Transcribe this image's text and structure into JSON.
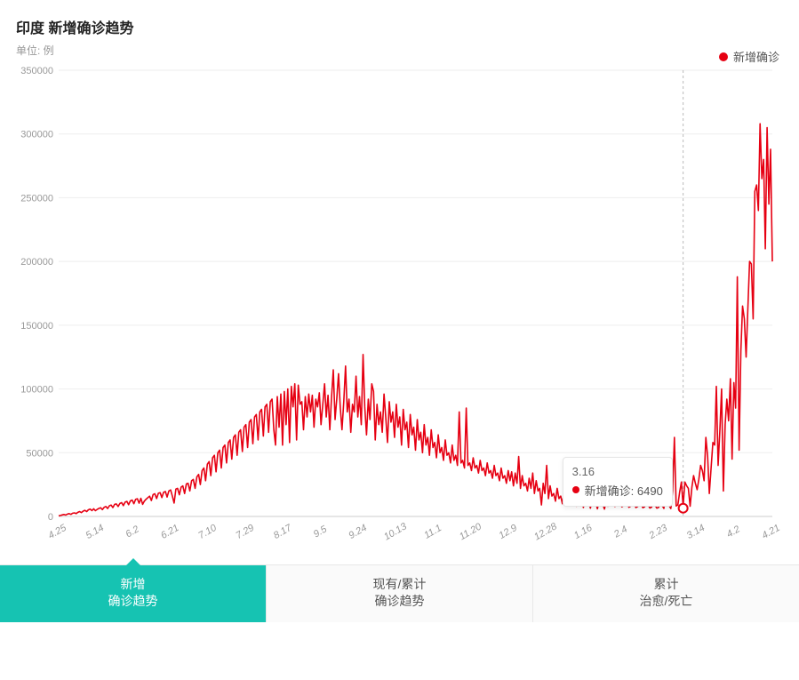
{
  "chart": {
    "type": "line",
    "title": "印度 新增确诊趋势",
    "unit_label": "单位: 例",
    "legend_label": "新增确诊",
    "series_color": "#e60012",
    "background_color": "#ffffff",
    "line_width": 1.6,
    "title_fontsize": 16,
    "unit_fontsize": 12,
    "axis_font_color": "#999999",
    "axis_fontsize": 11,
    "grid_color": "#eeeeee",
    "ylim": [
      0,
      350000
    ],
    "ytick_step": 50000,
    "y_ticks": [
      0,
      50000,
      100000,
      150000,
      200000,
      250000,
      300000,
      350000
    ],
    "x_ticks": [
      "4.25",
      "5.14",
      "6.2",
      "6.21",
      "7.10",
      "7.29",
      "8.17",
      "9.5",
      "9.24",
      "10.13",
      "11.1",
      "11.20",
      "12.9",
      "12.28",
      "1.16",
      "2.4",
      "2.23",
      "3.14",
      "4.2",
      "4.21"
    ],
    "x_tick_font_style": "italic",
    "hover": {
      "index_pos": 0.875,
      "date": "3.16",
      "series_label": "新增确诊",
      "value": 6490,
      "marker_color": "#e60012",
      "marker_ring_color": "#ffffff",
      "guide_color": "#bbbbbb",
      "guide_dash": "3,3"
    },
    "values": [
      500,
      800,
      1200,
      1500,
      1100,
      1800,
      2200,
      1600,
      2500,
      2800,
      2200,
      3200,
      3800,
      3000,
      4200,
      4800,
      3800,
      5200,
      5800,
      4600,
      6000,
      4500,
      5500,
      6300,
      6800,
      5400,
      7200,
      7800,
      6200,
      8400,
      8900,
      7000,
      9500,
      9800,
      7800,
      10200,
      10800,
      8500,
      11200,
      11800,
      9200,
      12200,
      12800,
      10000,
      13400,
      13900,
      10400,
      14200,
      9500,
      12000,
      13500,
      14800,
      15900,
      12500,
      17200,
      17800,
      14000,
      18200,
      18600,
      14800,
      19000,
      19500,
      15200,
      20000,
      20800,
      16000,
      10500,
      21500,
      22000,
      17000,
      23000,
      24000,
      18000,
      25500,
      26000,
      20000,
      28000,
      29000,
      22000,
      31000,
      33000,
      25000,
      36000,
      38000,
      28000,
      41000,
      43000,
      32000,
      46000,
      48000,
      35000,
      50000,
      52000,
      38000,
      54000,
      56000,
      42000,
      58000,
      60000,
      45000,
      62000,
      64000,
      48000,
      66000,
      68000,
      51000,
      70000,
      72000,
      54000,
      74000,
      76000,
      57000,
      78000,
      80000,
      60000,
      82000,
      84000,
      63000,
      86000,
      88000,
      66000,
      90000,
      92000,
      68000,
      56000,
      94000,
      70000,
      96000,
      56000,
      98000,
      72000,
      100000,
      58000,
      102000,
      86000,
      104000,
      60000,
      103000,
      88000,
      90000,
      68000,
      94000,
      78000,
      96000,
      82000,
      95000,
      70000,
      92000,
      86000,
      97000,
      72000,
      88000,
      104000,
      78000,
      95000,
      68000,
      93000,
      115000,
      76000,
      92000,
      112000,
      85000,
      68000,
      90000,
      118000,
      82000,
      92000,
      66000,
      88000,
      82000,
      110000,
      78000,
      94000,
      72000,
      127000,
      86000,
      64000,
      92000,
      76000,
      104000,
      98000,
      60000,
      88000,
      72000,
      82000,
      66000,
      96000,
      78000,
      58000,
      90000,
      74000,
      82000,
      62000,
      88000,
      70000,
      78000,
      56000,
      84000,
      68000,
      74000,
      54000,
      80000,
      64000,
      70000,
      52000,
      76000,
      60000,
      66000,
      50000,
      72000,
      56000,
      62000,
      48000,
      68000,
      54000,
      58000,
      46000,
      64000,
      50000,
      54000,
      44000,
      60000,
      48000,
      50000,
      42000,
      56000,
      44000,
      48000,
      40000,
      82000,
      42000,
      44000,
      38000,
      85000,
      40000,
      42000,
      36000,
      46000,
      38000,
      40000,
      34000,
      44000,
      36000,
      38000,
      32000,
      42000,
      34000,
      36000,
      30000,
      40000,
      32000,
      34000,
      28000,
      38000,
      30000,
      32000,
      26000,
      36000,
      28000,
      35000,
      24000,
      34000,
      26000,
      47000,
      22000,
      32000,
      24000,
      26000,
      20000,
      30000,
      22000,
      34000,
      18000,
      28000,
      20000,
      22000,
      9000,
      26000,
      18000,
      40000,
      14000,
      24000,
      16000,
      18000,
      12000,
      22000,
      14000,
      16000,
      10000,
      20000,
      13000,
      22000,
      9000,
      18000,
      12000,
      26000,
      8000,
      16000,
      11000,
      14000,
      7000,
      15000,
      10000,
      12000,
      6500,
      14000,
      9000,
      11000,
      6000,
      13000,
      8500,
      10000,
      5800,
      12000,
      8000,
      9500,
      15000,
      11500,
      7800,
      9000,
      10500,
      11000,
      7500,
      8500,
      14000,
      10500,
      7200,
      8000,
      14500,
      10000,
      7000,
      7800,
      15000,
      9500,
      6800,
      7500,
      16000,
      9000,
      6600,
      7300,
      17000,
      8800,
      6490,
      7100,
      18000,
      8600,
      6300,
      24000,
      19000,
      8400,
      6200,
      20000,
      62000,
      8200,
      9000,
      19000,
      27000,
      8100,
      27000,
      24000,
      22000,
      8000,
      23000,
      32000,
      26000,
      21000,
      29000,
      40000,
      36000,
      28000,
      62000,
      47000,
      18000,
      38000,
      58000,
      56000,
      102000,
      40000,
      68000,
      100000,
      20000,
      72000,
      92000,
      75000,
      108000,
      45000,
      105000,
      85000,
      188000,
      52000,
      130000,
      165000,
      155000,
      125000,
      162000,
      200000,
      198000,
      155000,
      255000,
      260000,
      240000,
      308000,
      265000,
      280000,
      210000,
      305000,
      245000,
      288000,
      200000
    ]
  },
  "tabs": {
    "active_index": 0,
    "active_bg_color": "#16c3b2",
    "inactive_bg_color": "#fafafa",
    "active_text_color": "#ffffff",
    "inactive_text_color": "#555555",
    "items": [
      {
        "line1": "新增",
        "line2": "确诊趋势"
      },
      {
        "line1": "现有/累计",
        "line2": "确诊趋势"
      },
      {
        "line1": "累计",
        "line2": "治愈/死亡"
      }
    ]
  }
}
